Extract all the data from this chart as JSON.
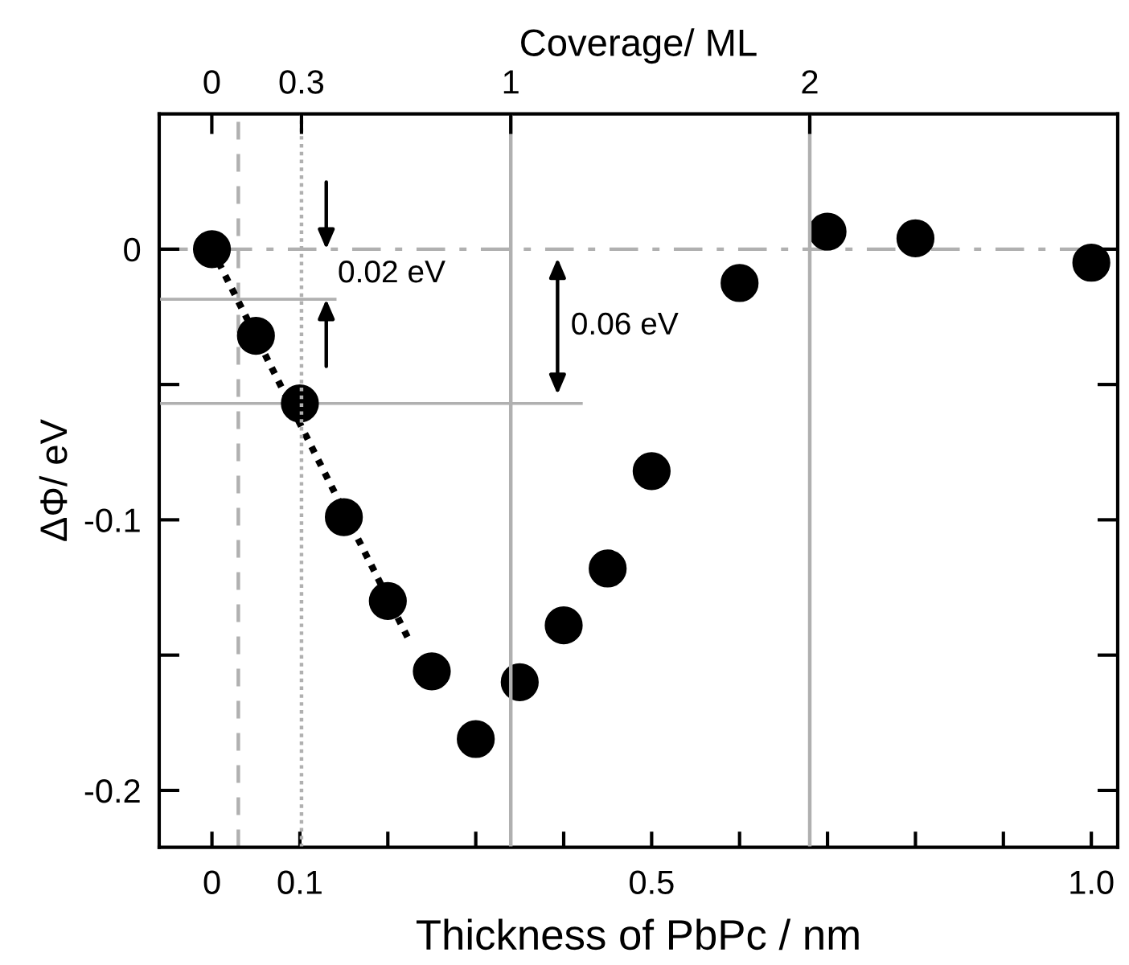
{
  "chart_data": {
    "type": "scatter",
    "xlabel": "Thickness of PbPc / nm",
    "ylabel": "ΔΦ/ eV",
    "x2label": "Coverage/ ML",
    "xlim": [
      -0.06,
      1.03
    ],
    "ylim": [
      -0.221,
      0.05
    ],
    "xticks": [
      0,
      {
        "value": 0.1,
        "label": "0.1"
      },
      {
        "value": 0.2,
        "label": null
      },
      {
        "value": 0.3,
        "label": null
      },
      {
        "value": 0.4,
        "label": null
      },
      {
        "value": 0.5,
        "label": "0.5"
      },
      {
        "value": 0.6,
        "label": null
      },
      {
        "value": 0.7,
        "label": null
      },
      {
        "value": 0.8,
        "label": null
      },
      {
        "value": 0.9,
        "label": null
      },
      {
        "value": 1.0,
        "label": "1.0"
      }
    ],
    "x2lim": [
      -0.176,
      3.03
    ],
    "x2ticks": [
      0,
      0.3,
      1,
      2
    ],
    "yticks": [
      0,
      {
        "value": -0.05,
        "label": null
      },
      {
        "value": -0.1,
        "label": "-0.1"
      },
      {
        "value": -0.15,
        "label": null
      },
      {
        "value": -0.2,
        "label": "-0.2"
      }
    ],
    "grid": false,
    "series": [
      {
        "marker": "circle",
        "color": "#000000",
        "x": [
          0,
          0.05,
          0.1,
          0.15,
          0.2,
          0.25,
          0.3,
          0.35,
          0.4,
          0.45,
          0.5,
          0.6,
          0.7,
          0.8,
          1.0
        ],
        "values": [
          0,
          -0.032,
          -0.057,
          -0.099,
          -0.13,
          -0.156,
          -0.181,
          -0.16,
          -0.139,
          -0.118,
          -0.082,
          -0.0125,
          0.0065,
          0.004,
          -0.005
        ]
      },
      {
        "type": "line",
        "color": "#000000",
        "line_style": "dotted",
        "x": [
          0,
          0.225
        ],
        "values": [
          0,
          -0.145
        ]
      },
      {
        "type": "line",
        "color": "#b0b0b0",
        "line_style": "solid",
        "x": [
          -0.06,
          0.14
        ],
        "values": [
          -0.0185,
          -0.0185
        ]
      },
      {
        "type": "line",
        "color": "#b0b0b0",
        "line_style": "solid",
        "x": [
          -0.06,
          0.42
        ],
        "values": [
          -0.057,
          -0.057
        ]
      }
    ],
    "ref_lines": [
      {
        "axis": "x",
        "value": 0.03,
        "color": "#b0b0b0",
        "line_style": "dashed"
      },
      {
        "axis": "x2",
        "value": 0.3,
        "color": "#b0b0b0",
        "line_style": "dotted"
      },
      {
        "axis": "x2",
        "value": 1,
        "color": "#b0b0b0",
        "line_style": "solid"
      },
      {
        "axis": "x2",
        "value": 2,
        "color": "#b0b0b0",
        "line_style": "solid"
      },
      {
        "axis": "y",
        "value": 0,
        "color": "#b0b0b0",
        "line_style": "dashdot"
      }
    ],
    "annotations": [
      "0.02 eV",
      "0.06 eV"
    ]
  }
}
